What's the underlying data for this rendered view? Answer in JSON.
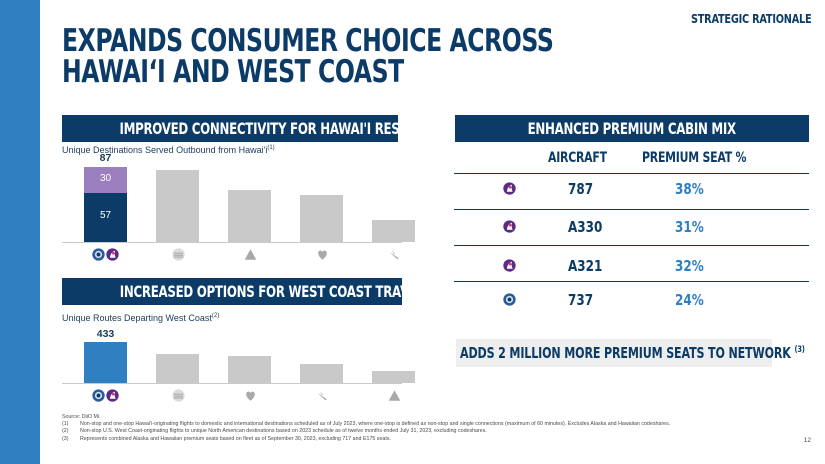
{
  "header": {
    "section_tag": "STRATEGIC RATIONALE",
    "title_line1": "EXPANDS CONSUMER CHOICE ACROSS",
    "title_line2": "HAWAI‘I AND WEST COAST"
  },
  "left_top": {
    "banner": "IMPROVED CONNECTIVITY FOR HAWAI'I RESIDENTS",
    "subtitle": "Unique Destinations Served Outbound from Hawai'i",
    "subtitle_note": "(1)"
  },
  "left_bottom": {
    "banner": "INCREASED OPTIONS FOR WEST COAST TRAVELERS",
    "subtitle": "Unique Routes Departing West Coast",
    "subtitle_note": "(2)"
  },
  "chart_data": [
    {
      "type": "bar",
      "title": "Unique Destinations Served Outbound from Hawai'i",
      "categories": [
        "alaska-hawaiian-combined-logo",
        "united-logo",
        "delta-logo",
        "southwest-logo",
        "american-logo"
      ],
      "series": [
        {
          "values": [
            57,
            0,
            0,
            0,
            0
          ]
        },
        {
          "values": [
            30,
            0,
            0,
            0,
            0
          ]
        }
      ],
      "totals": [
        87,
        83,
        60,
        55,
        25
      ],
      "labels": {
        "total": "87",
        "lower": "57",
        "upper": "30"
      },
      "ylim": [
        0,
        95
      ],
      "colors": {
        "highlight_lower": "#0b3b66",
        "highlight_upper": "#9b7fbf",
        "other": "#c9c9c9"
      }
    },
    {
      "type": "bar",
      "title": "Unique Routes Departing West Coast",
      "categories": [
        "alaska-hawaiian-combined-logo",
        "united-logo",
        "southwest-logo",
        "american-logo",
        "delta-logo"
      ],
      "values": [
        433,
        305,
        280,
        195,
        130
      ],
      "labels": {
        "first": "433"
      },
      "ylim": [
        0,
        470
      ],
      "colors": {
        "highlight": "#2f7fc1",
        "other": "#c9c9c9"
      }
    }
  ],
  "right": {
    "banner": "ENHANCED PREMIUM CABIN MIX",
    "col_aircraft": "AIRCRAFT",
    "col_premium": "PREMIUM SEAT %",
    "rows": [
      {
        "logo": "hawaiian-logo",
        "aircraft": "787",
        "premium": "38%"
      },
      {
        "logo": "hawaiian-logo",
        "aircraft": "A330",
        "premium": "31%"
      },
      {
        "logo": "hawaiian-logo",
        "aircraft": "A321",
        "premium": "32%"
      },
      {
        "logo": "alaska-logo",
        "aircraft": "737",
        "premium": "24%"
      }
    ],
    "adds_text": "ADDS 2 MILLION MORE PREMIUM SEATS TO NETWORK",
    "adds_note": "(3)"
  },
  "footer": {
    "source": "Source: DiiO Mi.",
    "notes": [
      {
        "num": "(1)",
        "text": "Non-stop and one-stop Hawai'i-originating flights to domestic and international destinations scheduled as of July 2023, where one-stop is defined as non-stop and single connections (maximum of 60 minutes). Excludes Alaska and Hawaiian codeshares."
      },
      {
        "num": "(2)",
        "text": "Non-stop U.S. West Coast-originating flights to unique North American destinations based on 2023 schedule as of twelve months ended July 31, 2023, excluding codeshares."
      },
      {
        "num": "(3)",
        "text": "Represents combined Alaska and Hawaiian premium seats based on fleet as of September 30, 2023, excluding 717 and E175 seats."
      }
    ],
    "page_number": "12"
  },
  "colors": {
    "navy": "#0b3b66",
    "blue": "#2f7fc1",
    "purple": "#9b7fbf",
    "gray": "#c9c9c9"
  }
}
